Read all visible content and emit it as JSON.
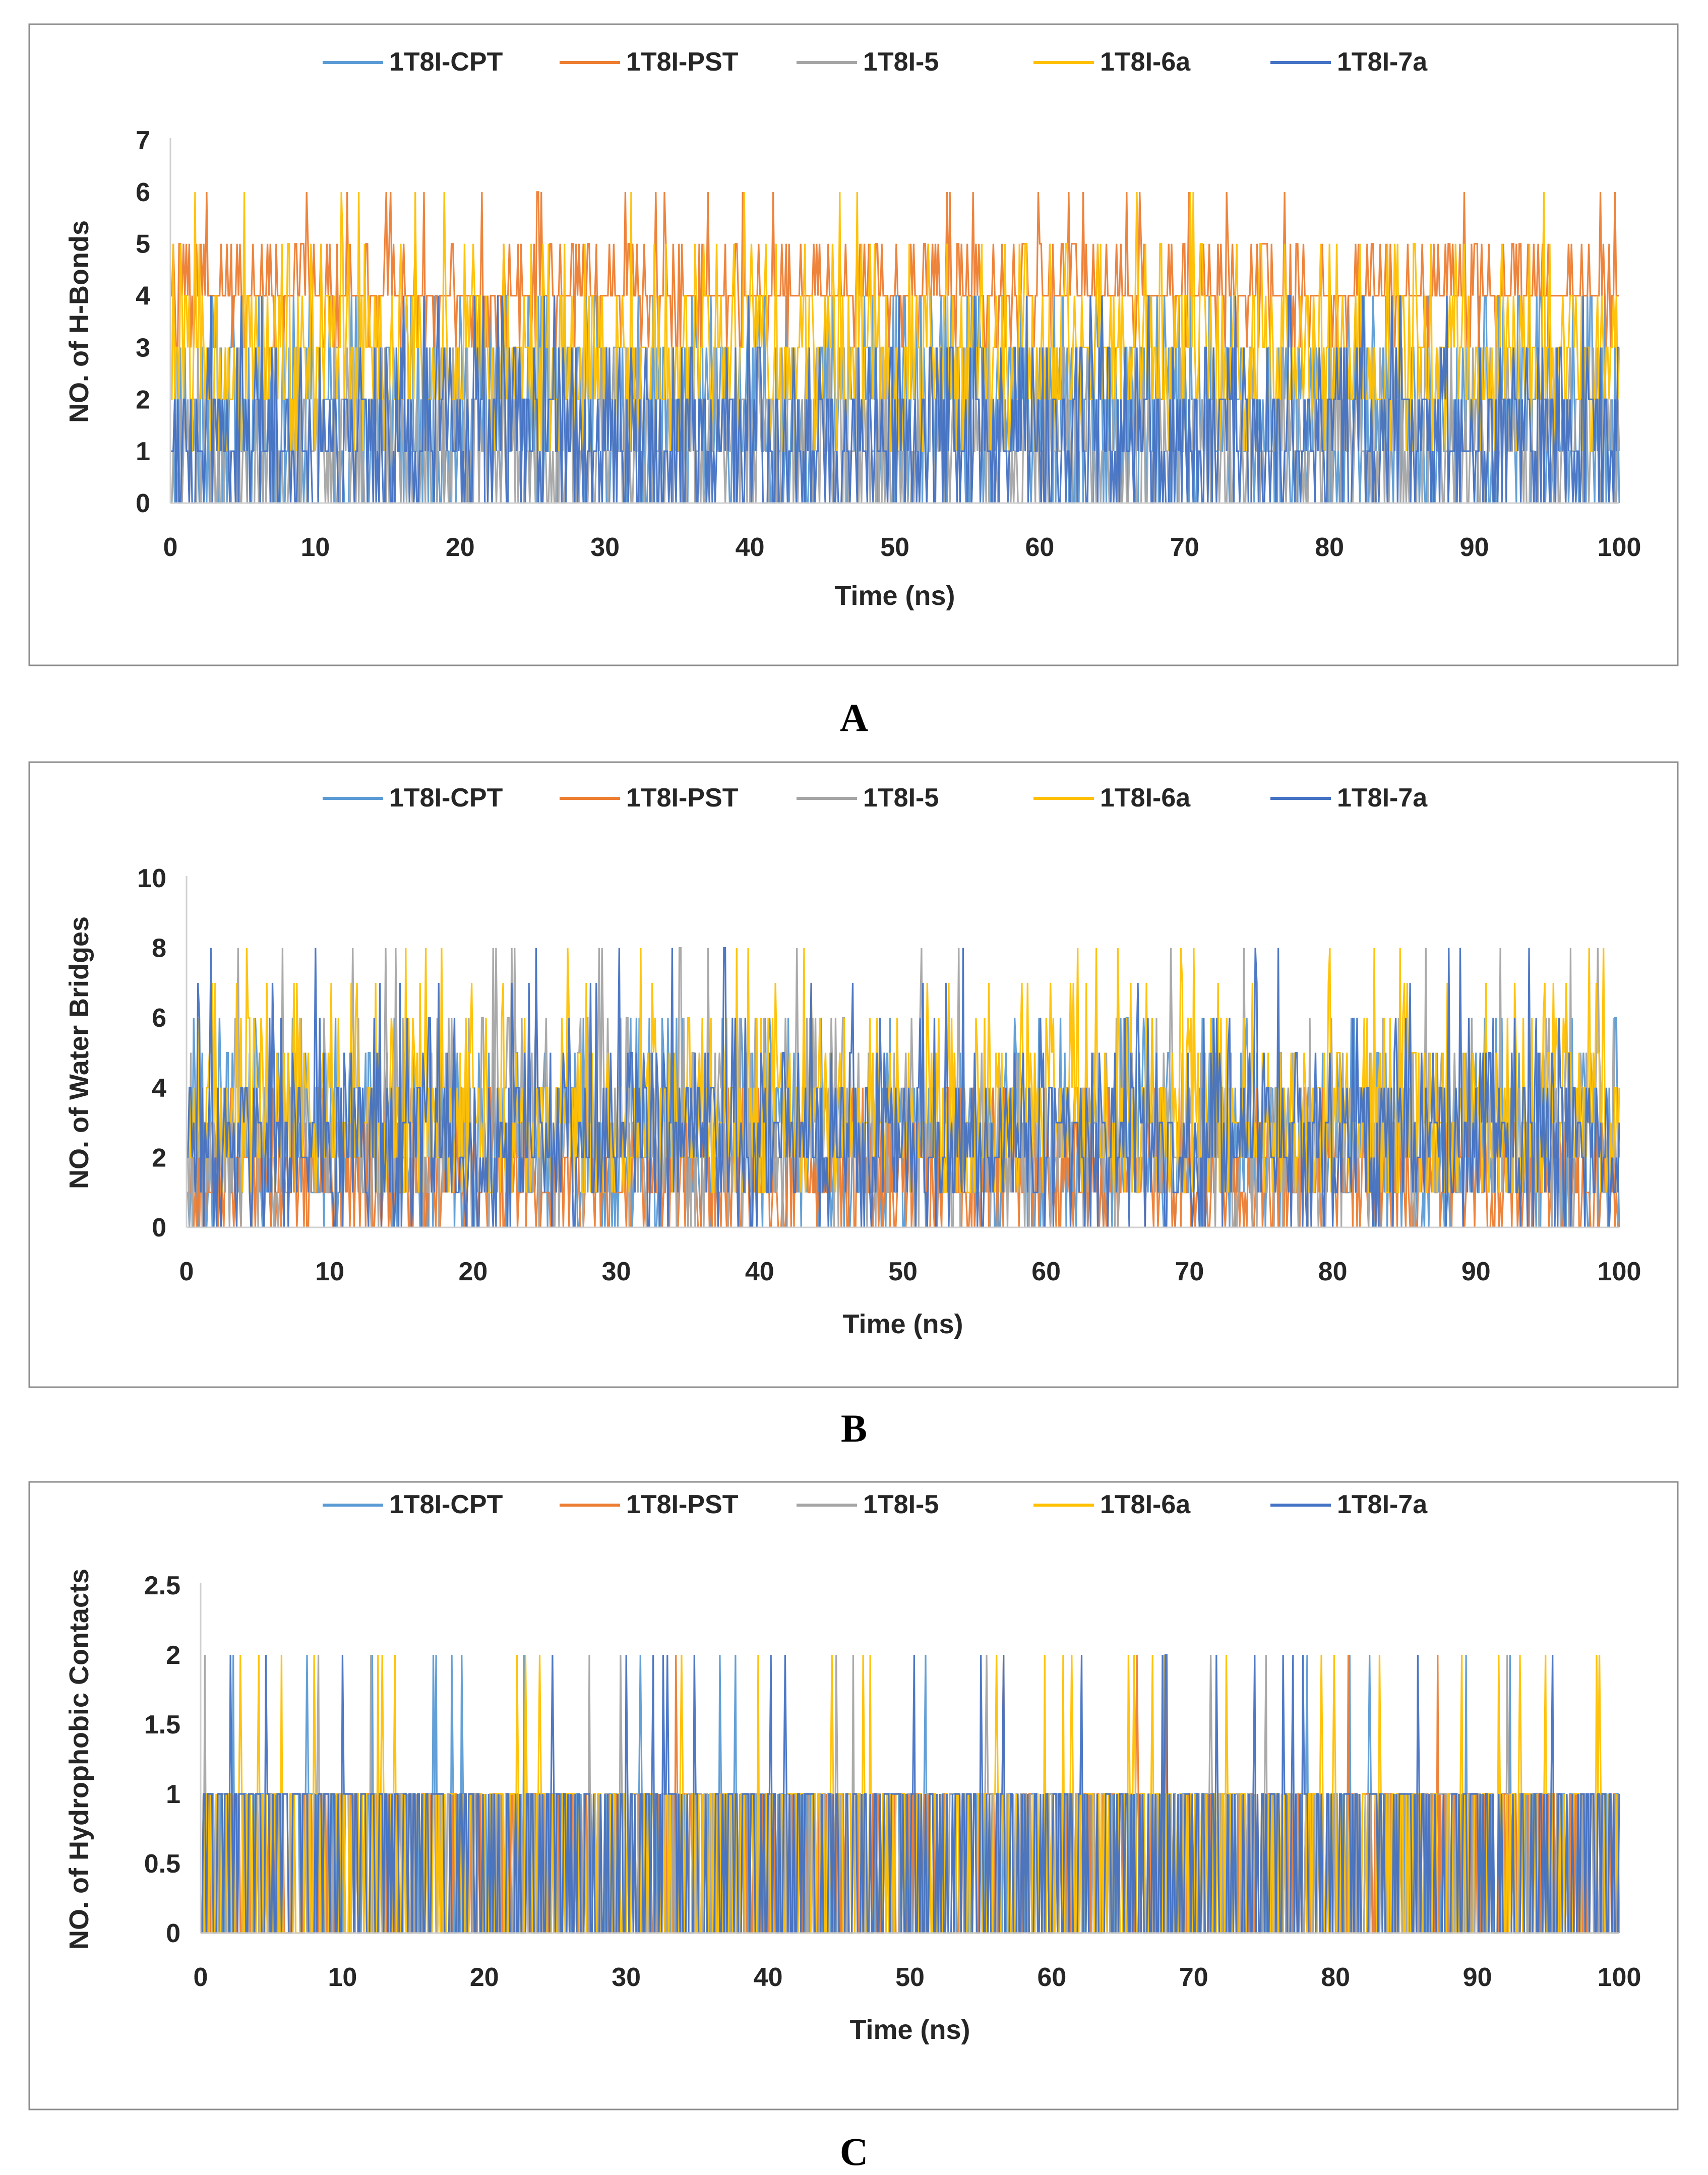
{
  "colors": {
    "1T8I-CPT": "#5b9bd5",
    "1T8I-PST": "#ed7d31",
    "1T8I-5": "#a5a5a5",
    "1T8I-6a": "#ffc000",
    "1T8I-7a": "#4472c4"
  },
  "chart_data": [
    {
      "type": "line",
      "panel_label": "A",
      "xlabel": "Time (ns)",
      "ylabel": "NO. of H-Bonds",
      "xlim": [
        0,
        100
      ],
      "ylim": [
        0,
        7
      ],
      "xticks": [
        "0",
        "10",
        "20",
        "30",
        "40",
        "50",
        "60",
        "70",
        "80",
        "90",
        "100"
      ],
      "yticks": [
        "0",
        "1",
        "2",
        "3",
        "4",
        "5",
        "6",
        "7"
      ],
      "legend": [
        "1T8I-CPT",
        "1T8I-PST",
        "1T8I-5",
        "1T8I-6a",
        "1T8I-7a"
      ],
      "grid": false,
      "legend_position": "top",
      "series": [
        {
          "name": "1T8I-CPT",
          "seed": 11,
          "levels": [
            0,
            1,
            2,
            3,
            4
          ],
          "weights": [
            20,
            25,
            25,
            20,
            10
          ]
        },
        {
          "name": "1T8I-PST",
          "seed": 22,
          "levels": [
            3,
            4,
            5,
            6
          ],
          "weights": [
            8,
            70,
            20,
            2
          ]
        },
        {
          "name": "1T8I-5",
          "seed": 33,
          "levels": [
            0,
            1,
            2,
            3
          ],
          "weights": [
            30,
            35,
            25,
            10
          ]
        },
        {
          "name": "1T8I-6a",
          "seed": 44,
          "levels": [
            1,
            2,
            3,
            4,
            5,
            6
          ],
          "weights": [
            10,
            30,
            35,
            17,
            6,
            2
          ]
        },
        {
          "name": "1T8I-7a",
          "seed": 55,
          "levels": [
            0,
            1,
            2,
            3,
            4
          ],
          "weights": [
            25,
            30,
            30,
            12,
            3
          ]
        }
      ]
    },
    {
      "type": "line",
      "panel_label": "B",
      "xlabel": "Time (ns)",
      "ylabel": "NO. of Water Bridges",
      "xlim": [
        0,
        100
      ],
      "ylim": [
        0,
        10
      ],
      "xticks": [
        "0",
        "10",
        "20",
        "30",
        "40",
        "50",
        "60",
        "70",
        "80",
        "90",
        "100"
      ],
      "yticks": [
        "0",
        "2",
        "4",
        "6",
        "8",
        "10"
      ],
      "legend": [
        "1T8I-CPT",
        "1T8I-PST",
        "1T8I-5",
        "1T8I-6a",
        "1T8I-7a"
      ],
      "grid": false,
      "legend_position": "top",
      "series": [
        {
          "name": "1T8I-CPT",
          "seed": 66,
          "levels": [
            0,
            1,
            2,
            3,
            4,
            5,
            6
          ],
          "weights": [
            10,
            20,
            25,
            20,
            12,
            8,
            5
          ]
        },
        {
          "name": "1T8I-PST",
          "seed": 77,
          "levels": [
            0,
            1,
            2,
            3,
            4
          ],
          "weights": [
            25,
            30,
            25,
            15,
            5
          ]
        },
        {
          "name": "1T8I-5",
          "seed": 88,
          "levels": [
            0,
            1,
            2,
            3,
            4,
            5,
            6,
            8
          ],
          "weights": [
            8,
            15,
            25,
            22,
            15,
            8,
            5,
            2
          ]
        },
        {
          "name": "1T8I-6a",
          "seed": 99,
          "levels": [
            1,
            2,
            3,
            4,
            5,
            6,
            7,
            8
          ],
          "weights": [
            15,
            22,
            22,
            18,
            10,
            7,
            4,
            2
          ]
        },
        {
          "name": "1T8I-7a",
          "seed": 111,
          "levels": [
            0,
            1,
            2,
            3,
            4,
            5,
            6,
            7,
            8
          ],
          "weights": [
            8,
            15,
            25,
            22,
            15,
            8,
            4,
            2,
            1
          ]
        }
      ]
    },
    {
      "type": "line",
      "panel_label": "C",
      "xlabel": "Time (ns)",
      "ylabel": "NO. of Hydrophobic Contacts",
      "xlim": [
        0,
        100
      ],
      "ylim": [
        0,
        2.5
      ],
      "xticks": [
        "0",
        "10",
        "20",
        "30",
        "40",
        "50",
        "60",
        "70",
        "80",
        "90",
        "100"
      ],
      "yticks": [
        "0",
        "0.5",
        "1",
        "1.5",
        "2",
        "2.5"
      ],
      "legend": [
        "1T8I-CPT",
        "1T8I-PST",
        "1T8I-5",
        "1T8I-6a",
        "1T8I-7a"
      ],
      "grid": false,
      "legend_position": "top",
      "series": [
        {
          "name": "1T8I-CPT",
          "seed": 122,
          "levels": [
            0,
            1,
            2
          ],
          "weights": [
            50,
            48,
            2
          ]
        },
        {
          "name": "1T8I-PST",
          "seed": 133,
          "levels": [
            0,
            1,
            2
          ],
          "weights": [
            55,
            44,
            1
          ]
        },
        {
          "name": "1T8I-5",
          "seed": 144,
          "levels": [
            0,
            1,
            2
          ],
          "weights": [
            50,
            48,
            2
          ]
        },
        {
          "name": "1T8I-6a",
          "seed": 155,
          "levels": [
            0,
            1,
            2
          ],
          "weights": [
            50,
            47,
            3
          ]
        },
        {
          "name": "1T8I-7a",
          "seed": 166,
          "levels": [
            0,
            1,
            2
          ],
          "weights": [
            48,
            49,
            3
          ]
        }
      ]
    }
  ]
}
